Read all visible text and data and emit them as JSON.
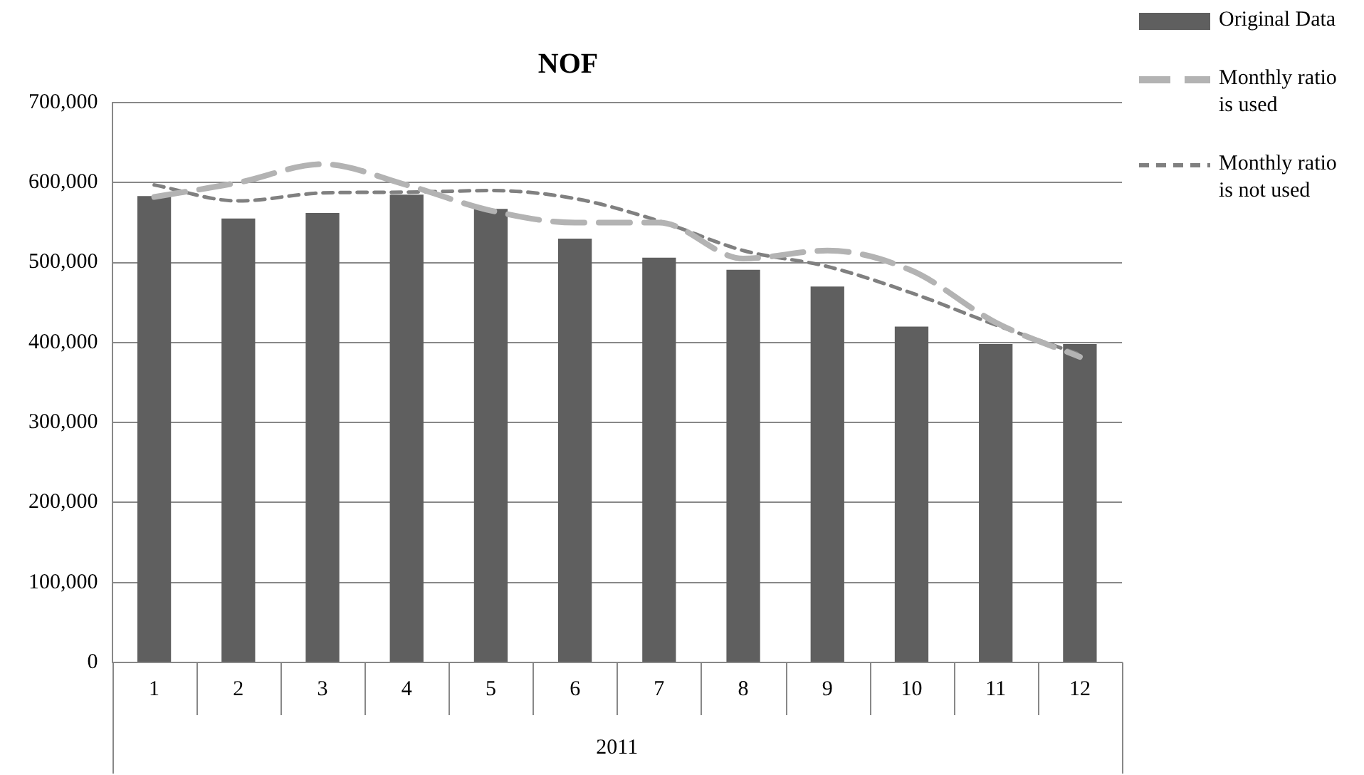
{
  "chart_data": {
    "type": "bar",
    "title": "NOF",
    "xlabel": "2011",
    "categories": [
      "1",
      "2",
      "3",
      "4",
      "5",
      "6",
      "7",
      "8",
      "9",
      "10",
      "11",
      "12"
    ],
    "series": [
      {
        "name": "Original Data",
        "color": "#5f5f5f",
        "values": [
          583000,
          555000,
          562000,
          585000,
          567000,
          530000,
          506000,
          491000,
          470000,
          420000,
          398000,
          398000
        ]
      },
      {
        "name": "Monthly ratio is used",
        "type": "line",
        "color": "#b3b3b3",
        "line_style": "dashed",
        "values": [
          582000,
          600000,
          623000,
          597000,
          565000,
          550000,
          550000,
          505000,
          515000,
          490000,
          425000,
          382000
        ]
      },
      {
        "name": "Monthly ratio is not used",
        "type": "line",
        "color": "#808080",
        "line_style": "dotted",
        "values": [
          597000,
          577000,
          587000,
          588000,
          590000,
          580000,
          552000,
          515000,
          495000,
          462000,
          422000,
          385000
        ]
      }
    ],
    "ylim": [
      0,
      700000
    ],
    "yticks": [
      0,
      {
        "value": 100000,
        "label": "100,000"
      },
      {
        "value": 200000,
        "label": "200,000"
      },
      {
        "value": 300000,
        "label": "300,000"
      },
      {
        "value": 400000,
        "label": "400,000"
      },
      {
        "value": 500000,
        "label": "500,000"
      },
      {
        "value": 600000,
        "label": "600,000"
      },
      {
        "value": 700000,
        "label": "700,000"
      }
    ],
    "grid": "y",
    "legend": "right",
    "marker": "none"
  }
}
